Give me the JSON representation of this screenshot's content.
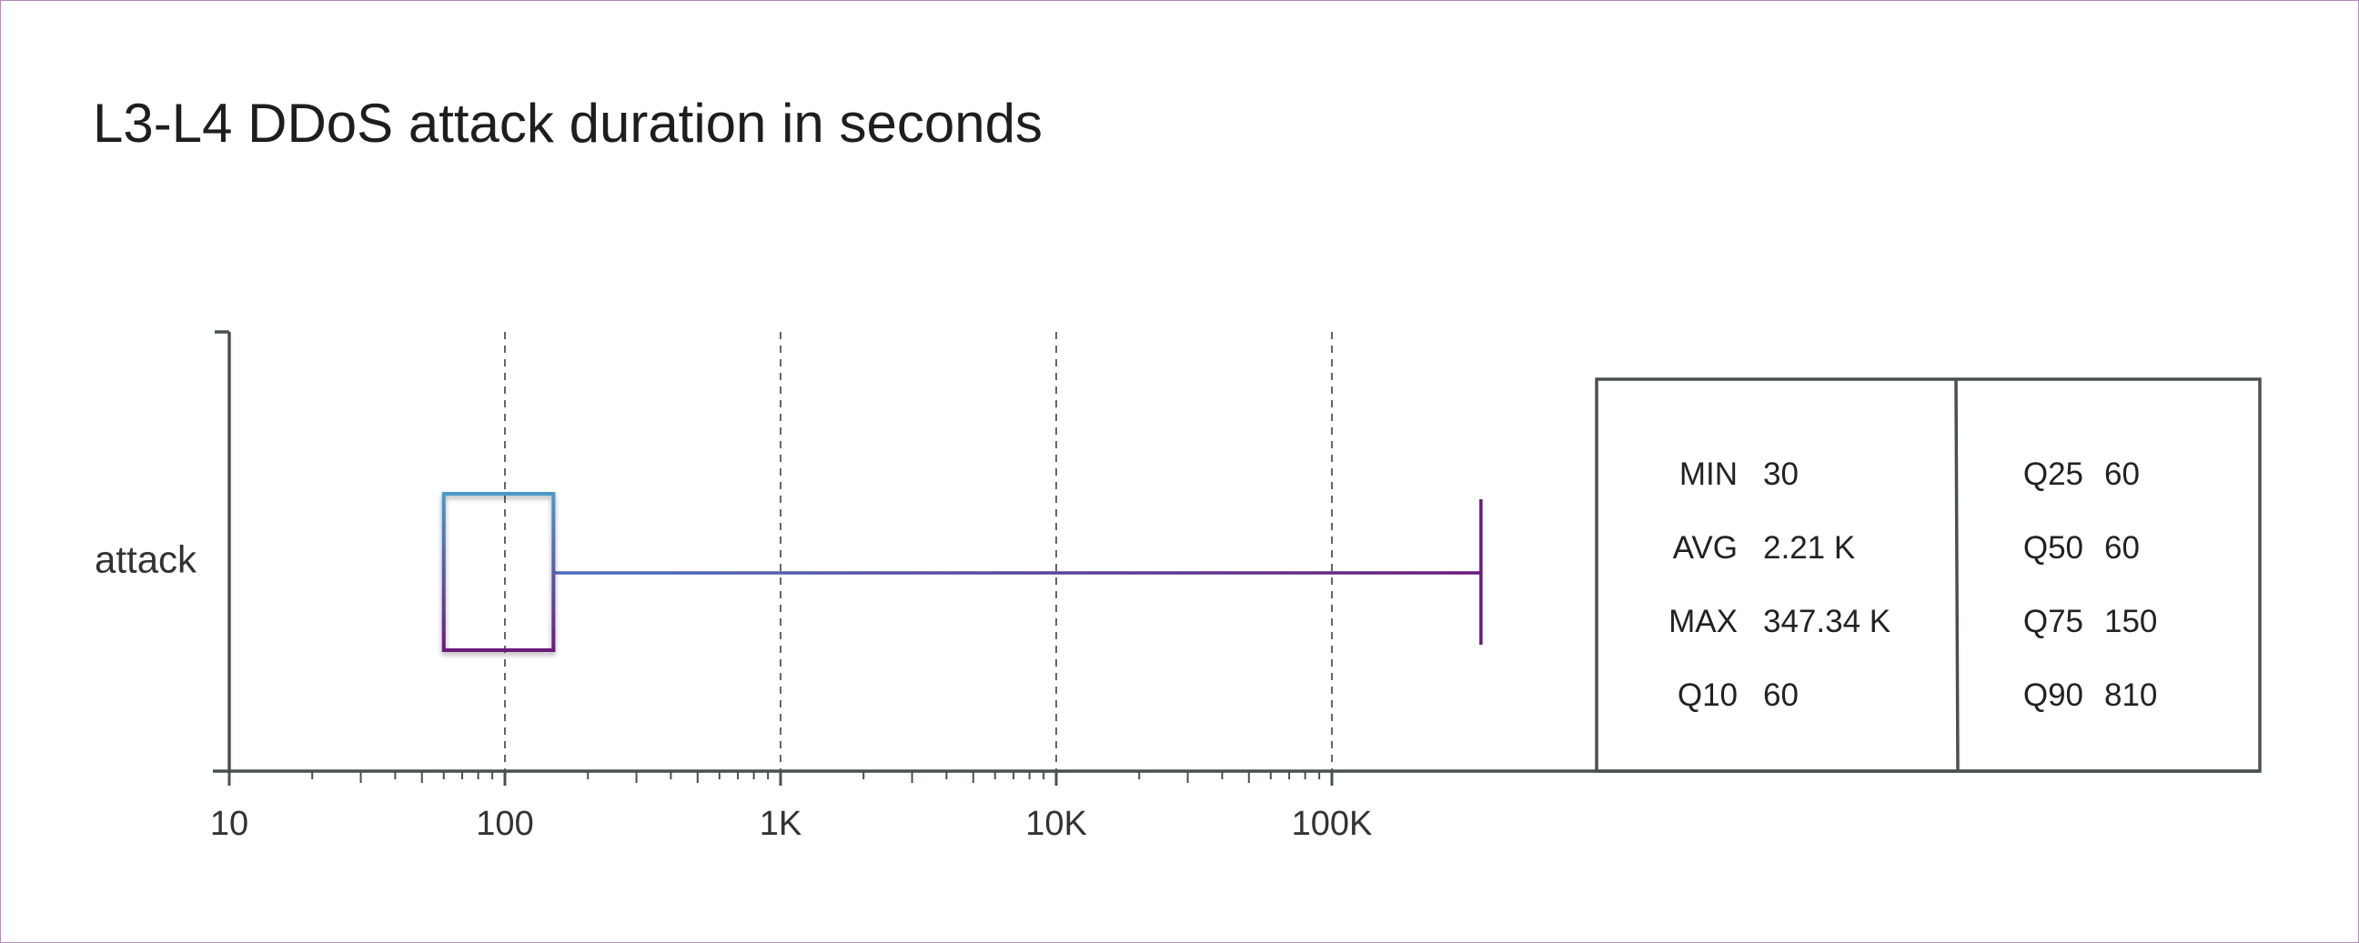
{
  "chart_data": {
    "type": "boxplot",
    "title": "L3-L4 DDoS attack duration in seconds",
    "xscale": "log",
    "xlim": [
      10,
      1000000
    ],
    "x_ticks": [
      {
        "value": 10,
        "label": "10"
      },
      {
        "value": 100,
        "label": "100"
      },
      {
        "value": 1000,
        "label": "1K"
      },
      {
        "value": 10000,
        "label": "10K"
      },
      {
        "value": 100000,
        "label": "100K"
      }
    ],
    "grid": "vertical dashed at major ticks",
    "categories": [
      "attack"
    ],
    "series": [
      {
        "category": "attack",
        "q25": 60,
        "q75": 150,
        "whisker_high": 347340,
        "fill": "diagonal hatch, gradient"
      }
    ],
    "stats_table": {
      "left": [
        {
          "label": "MIN",
          "value": "30"
        },
        {
          "label": "AVG",
          "value": "2.21 K"
        },
        {
          "label": "MAX",
          "value": "347.34 K"
        },
        {
          "label": "Q10",
          "value": "60"
        }
      ],
      "right": [
        {
          "label": "Q25",
          "value": "60"
        },
        {
          "label": "Q50",
          "value": "60"
        },
        {
          "label": "Q75",
          "value": "150"
        },
        {
          "label": "Q90",
          "value": "810"
        }
      ]
    },
    "colors": {
      "gradient_top": "#4a9ac9",
      "gradient_bottom": "#6a1b7a",
      "axis": "#4a5050",
      "grid": "#666666"
    }
  }
}
